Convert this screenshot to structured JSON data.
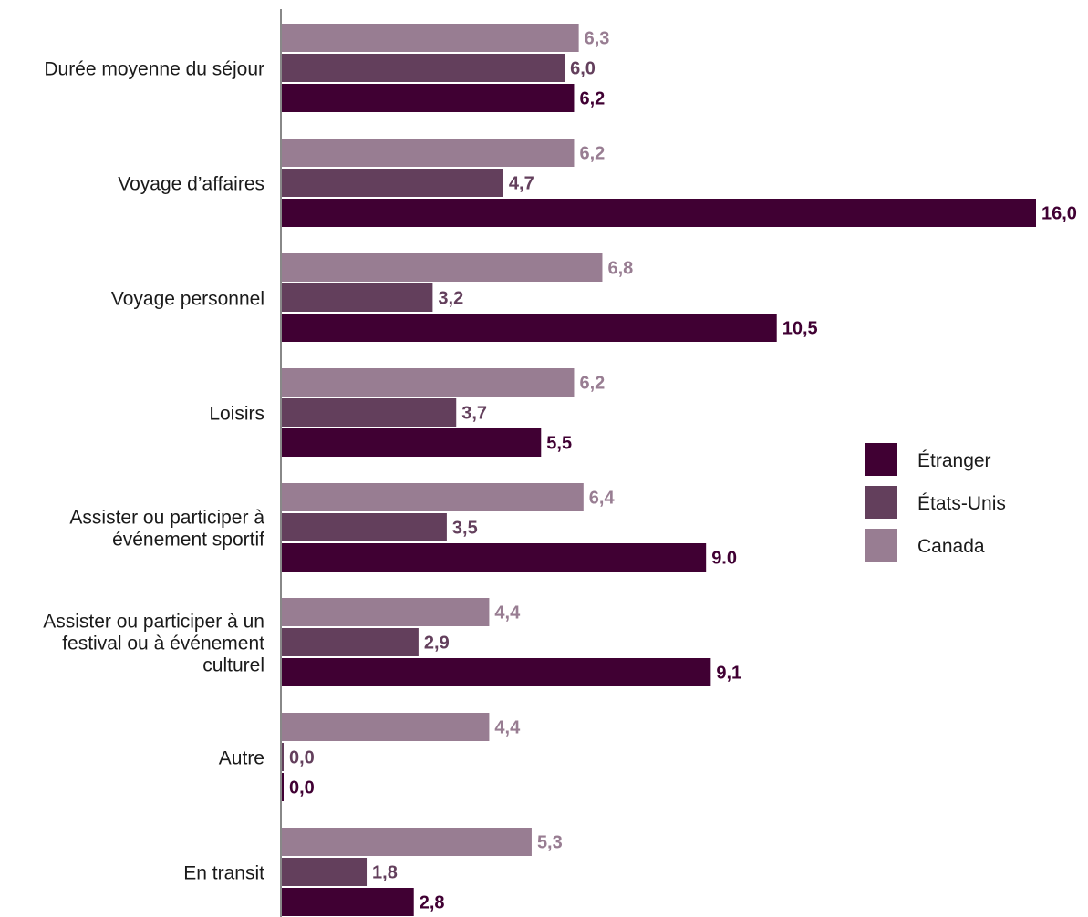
{
  "chart_data": {
    "type": "bar",
    "orientation": "horizontal",
    "categories": [
      [
        "Durée moyenne du séjour"
      ],
      [
        "Voyage d’affaires"
      ],
      [
        "Voyage personnel"
      ],
      [
        "Loisirs"
      ],
      [
        "Assister ou participer à",
        "événement sportif"
      ],
      [
        "Assister ou participer à un",
        "festival ou à événement",
        "culturel"
      ],
      [
        "Autre"
      ],
      [
        "En transit"
      ]
    ],
    "series": [
      {
        "name": "Canada",
        "color": "#987d92",
        "values": [
          6.3,
          6.2,
          6.8,
          6.2,
          6.4,
          4.4,
          4.4,
          5.3
        ],
        "labels": [
          "6,3",
          "6,2",
          "6,8",
          "6,2",
          "6,4",
          "4,4",
          "4,4",
          "5,3"
        ]
      },
      {
        "name": "États-Unis",
        "color": "#633f5c",
        "values": [
          6.0,
          4.7,
          3.2,
          3.7,
          3.5,
          2.9,
          0.0,
          1.8
        ],
        "labels": [
          "6,0",
          "4,7",
          "3,2",
          "3,7",
          "3,5",
          "2,9",
          "0,0",
          "1,8"
        ]
      },
      {
        "name": "Étranger",
        "color": "#400033",
        "values": [
          6.2,
          16.0,
          10.5,
          5.5,
          9.0,
          9.1,
          0.0,
          2.8
        ],
        "labels": [
          "6,2",
          "16,0",
          "10,5",
          "5,5",
          "9.0",
          "9,1",
          "0,0",
          "2,8"
        ]
      }
    ],
    "xlim": [
      0,
      16
    ],
    "legend": {
      "position": "right",
      "order": [
        "Étranger",
        "États-Unis",
        "Canada"
      ]
    },
    "grid": false
  }
}
